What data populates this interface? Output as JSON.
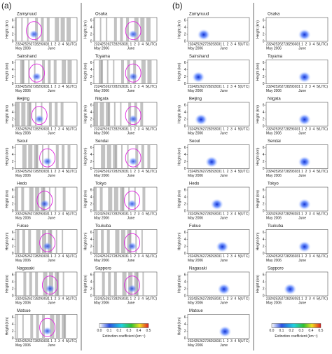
{
  "panel_labels": [
    "(a)",
    "(b)"
  ],
  "stations_a": {
    "left": [
      "Zamynuud",
      "Sainshand",
      "Beijing",
      "Seoul",
      "Hedo",
      "Fukue",
      "Nagasaki",
      "Matsue"
    ],
    "right": [
      "Osaka",
      "Toyama",
      "Niigata",
      "Sendai",
      "Tokyo",
      "Tsukuba",
      "Sapporo"
    ]
  },
  "stations_b": {
    "left": [
      "Zamynuud",
      "Sainshand",
      "Beijing",
      "Seoul",
      "Hedo",
      "Fukue",
      "Nagasaki",
      "Matsue"
    ],
    "right": [
      "Osaka",
      "Toyama",
      "Niigata",
      "Sendai",
      "Tokyo",
      "Tsukuba",
      "Sapporo"
    ]
  },
  "axis": {
    "y_label": "Height (km)",
    "y_ticks": [
      0,
      2,
      4,
      6
    ],
    "x_ticks": [
      "23",
      "24",
      "25",
      "26",
      "27",
      "28",
      "29",
      "30",
      "31",
      "1",
      "2",
      "3",
      "4",
      "5"
    ],
    "month_labels": [
      "May 2006",
      "June"
    ],
    "time_unit": "(UTC)"
  },
  "colorbar": {
    "ticks": [
      "0.0",
      "0.1",
      "0.2",
      "0.3",
      "0.4",
      "0.5"
    ],
    "label": "Extinction coefficient (km⁻¹)"
  }
}
